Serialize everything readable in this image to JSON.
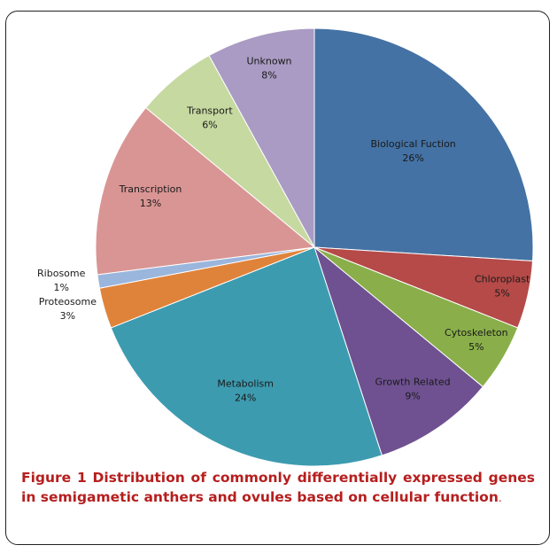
{
  "chart_data": {
    "type": "pie",
    "slices": [
      {
        "name": "Biological Fuction",
        "value": 26,
        "label": "26%",
        "color": "#4472a4"
      },
      {
        "name": "Chloroplast",
        "value": 5,
        "label": "5%",
        "color": "#b54a48"
      },
      {
        "name": "Cytoskeleton",
        "value": 5,
        "label": "5%",
        "color": "#8aaf4a"
      },
      {
        "name": "Growth Related",
        "value": 9,
        "label": "9%",
        "color": "#6f5191"
      },
      {
        "name": "Metabolism",
        "value": 24,
        "label": "24%",
        "color": "#3d9bb0"
      },
      {
        "name": "Proteosome",
        "value": 3,
        "label": "3%",
        "color": "#e0833a"
      },
      {
        "name": "Ribosome",
        "value": 1,
        "label": "1%",
        "color": "#9bb6dd"
      },
      {
        "name": "Transcription",
        "value": 13,
        "label": "13%",
        "color": "#d99594"
      },
      {
        "name": "Transport",
        "value": 6,
        "label": "6%",
        "color": "#c6d9a0"
      },
      {
        "name": "Unknown",
        "value": 8,
        "label": "8%",
        "color": "#a99bc3"
      }
    ],
    "start_angle_deg": 0,
    "direction": "clockwise",
    "legend": "none",
    "labels": "on-slice"
  },
  "caption": {
    "figure_label": "Figure 1",
    "text": " Distribution of commonly differentially expressed genes in semigametic anthers and ovules based on cellular function",
    "end": "."
  }
}
